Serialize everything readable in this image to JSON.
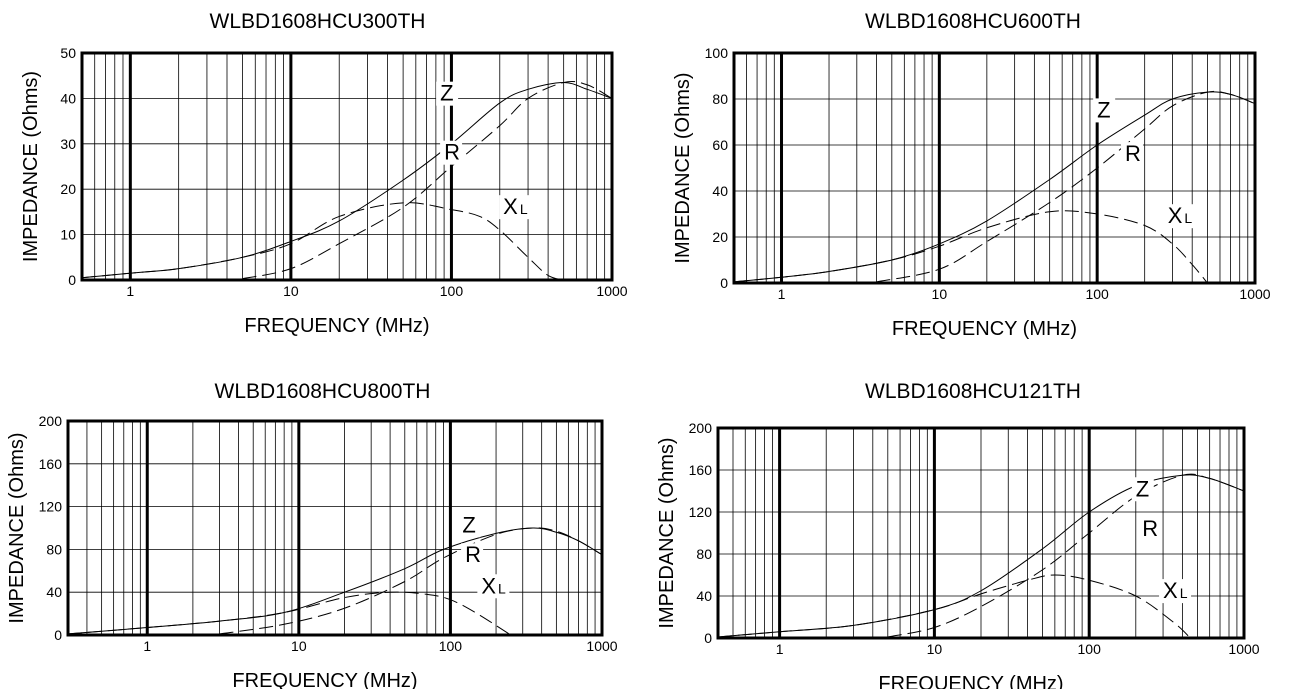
{
  "chart_data": [
    {
      "type": "line",
      "title": "WLBD1608HCU300TH",
      "xlabel": "FREQUENCY  (MHz)",
      "ylabel": "IMPEDANCE  (Ohms)",
      "xscale": "log",
      "xlim": [
        0.5,
        1000
      ],
      "ylim": [
        0,
        50
      ],
      "xticks": [
        1,
        10,
        100,
        1000
      ],
      "xtick_labels": [
        "1",
        "10",
        "100",
        "1000"
      ],
      "yticks": [
        0,
        10,
        20,
        30,
        40,
        50
      ],
      "ytick_labels": [
        "0",
        "10",
        "20",
        "30",
        "40",
        "50"
      ],
      "grid": true,
      "series": [
        {
          "name": "Z",
          "style": "solid",
          "x": [
            0.5,
            1,
            2,
            5,
            10,
            20,
            50,
            100,
            200,
            300,
            500,
            700,
            1000
          ],
          "y": [
            0.5,
            1.5,
            2.5,
            5,
            8.5,
            13,
            22,
            30,
            39,
            42,
            43.5,
            42,
            40
          ]
        },
        {
          "name": "R",
          "style": "dashed",
          "x": [
            5,
            10,
            20,
            50,
            100,
            200,
            300,
            500,
            700,
            1000
          ],
          "y": [
            0.3,
            2.5,
            8,
            16,
            25,
            34,
            40,
            43.5,
            43,
            40
          ]
        },
        {
          "name": "XL",
          "style": "dashed",
          "x": [
            0.5,
            1,
            2,
            5,
            10,
            20,
            50,
            100,
            150,
            200,
            300,
            400,
            500
          ],
          "y": [
            0.5,
            1.5,
            2.5,
            5,
            8,
            14,
            17,
            15.5,
            14,
            11,
            5,
            1,
            0
          ]
        }
      ],
      "labels": [
        {
          "text": "Z",
          "sub": "",
          "x": 85,
          "y": 39.5
        },
        {
          "text": "R",
          "sub": "",
          "x": 90,
          "y": 26.5
        },
        {
          "text": "X",
          "sub": "L",
          "x": 210,
          "y": 14.5
        }
      ]
    },
    {
      "type": "line",
      "title": "WLBD1608HCU600TH",
      "xlabel": "FREQUENCY  (MHz)",
      "ylabel": "IMPEDANCE  (Ohms)",
      "xscale": "log",
      "xlim": [
        0.5,
        1000
      ],
      "ylim": [
        0,
        100
      ],
      "xticks": [
        1,
        10,
        100,
        1000
      ],
      "xtick_labels": [
        "1",
        "10",
        "100",
        "1000"
      ],
      "yticks": [
        0,
        20,
        40,
        60,
        80,
        100
      ],
      "ytick_labels": [
        "0",
        "20",
        "40",
        "60",
        "80",
        "100"
      ],
      "grid": true,
      "series": [
        {
          "name": "Z",
          "style": "solid",
          "x": [
            0.5,
            1,
            2,
            5,
            10,
            20,
            50,
            100,
            200,
            300,
            500,
            700,
            1000
          ],
          "y": [
            0.5,
            2.5,
            5,
            10,
            17,
            27,
            45,
            60,
            73,
            80,
            83,
            82,
            78
          ]
        },
        {
          "name": "R",
          "style": "dashed",
          "x": [
            4,
            10,
            20,
            50,
            100,
            200,
            300,
            500,
            700,
            1000
          ],
          "y": [
            0.5,
            6,
            18,
            35,
            50,
            67,
            77,
            83,
            82,
            78
          ]
        },
        {
          "name": "XL",
          "style": "dashed",
          "x": [
            0.5,
            1,
            2,
            5,
            10,
            20,
            50,
            100,
            200,
            300,
            400,
            500
          ],
          "y": [
            0.5,
            2.5,
            5,
            10,
            16,
            24,
            31,
            30,
            25,
            17,
            8,
            0
          ]
        }
      ],
      "labels": [
        {
          "text": "Z",
          "sub": "",
          "x": 100,
          "y": 72
        },
        {
          "text": "R",
          "sub": "",
          "x": 150,
          "y": 53
        },
        {
          "text": "X",
          "sub": "L",
          "x": 280,
          "y": 26
        }
      ]
    },
    {
      "type": "line",
      "title": "WLBD1608HCU800TH",
      "xlabel": "FREQUENCY  (MHz)",
      "ylabel": "IMPEDANCE  (Ohms)",
      "xscale": "log",
      "xlim": [
        0.3,
        1000
      ],
      "ylim": [
        0,
        200
      ],
      "xticks": [
        1,
        10,
        100,
        1000
      ],
      "xtick_labels": [
        "1",
        "10",
        "100",
        "1000"
      ],
      "yticks": [
        0,
        40,
        80,
        120,
        160,
        200
      ],
      "ytick_labels": [
        "0",
        "40",
        "80",
        "120",
        "160",
        "200"
      ],
      "grid": true,
      "series": [
        {
          "name": "Z",
          "style": "solid",
          "x": [
            0.3,
            1,
            3,
            8,
            20,
            50,
            90,
            200,
            350,
            500,
            700,
            1000
          ],
          "y": [
            1,
            7,
            13,
            21,
            40,
            62,
            80,
            95,
            100,
            96,
            88,
            75
          ]
        },
        {
          "name": "R",
          "style": "dashed",
          "x": [
            3,
            8,
            20,
            50,
            90,
            200,
            350,
            500,
            700,
            1000
          ],
          "y": [
            1,
            10,
            25,
            50,
            72,
            94,
            100,
            97,
            88,
            75
          ]
        },
        {
          "name": "XL",
          "style": "dashed",
          "x": [
            0.3,
            1,
            3,
            8,
            20,
            40,
            70,
            100,
            150,
            250
          ],
          "y": [
            1,
            7,
            13,
            21,
            35,
            40,
            38,
            33,
            20,
            0
          ]
        }
      ],
      "labels": [
        {
          "text": "Z",
          "sub": "",
          "x": 120,
          "y": 96
        },
        {
          "text": "R",
          "sub": "",
          "x": 125,
          "y": 68
        },
        {
          "text": "X",
          "sub": "L",
          "x": 160,
          "y": 39
        }
      ]
    },
    {
      "type": "line",
      "title": "WLBD1608HCU121TH",
      "xlabel": "FREQUENCY  (MHz)",
      "ylabel": "IMPEDANCE  (Ohms)",
      "xscale": "log",
      "xlim": [
        0.4,
        1000
      ],
      "ylim": [
        0,
        200
      ],
      "xticks": [
        1,
        10,
        100,
        1000
      ],
      "xtick_labels": [
        "1",
        "10",
        "100",
        "1000"
      ],
      "yticks": [
        0,
        40,
        80,
        120,
        160,
        200
      ],
      "ytick_labels": [
        "0",
        "40",
        "80",
        "120",
        "160",
        "200"
      ],
      "grid": true,
      "series": [
        {
          "name": "Z",
          "style": "solid",
          "x": [
            0.4,
            1,
            3,
            10,
            20,
            50,
            100,
            200,
            400,
            600,
            1000
          ],
          "y": [
            1,
            6,
            12,
            27,
            45,
            85,
            120,
            145,
            155,
            152,
            140
          ]
        },
        {
          "name": "R",
          "style": "dashed",
          "x": [
            5,
            10,
            20,
            50,
            100,
            200,
            400,
            600,
            1000
          ],
          "y": [
            1,
            10,
            30,
            65,
            100,
            135,
            155,
            152,
            140
          ]
        },
        {
          "name": "XL",
          "style": "dashed",
          "x": [
            0.4,
            1,
            3,
            10,
            20,
            40,
            60,
            100,
            200,
            350,
            450
          ],
          "y": [
            1,
            6,
            12,
            27,
            42,
            55,
            60,
            55,
            40,
            15,
            0
          ]
        }
      ],
      "labels": [
        {
          "text": "Z",
          "sub": "",
          "x": 200,
          "y": 135
        },
        {
          "text": "R",
          "sub": "",
          "x": 220,
          "y": 97
        },
        {
          "text": "X",
          "sub": "L",
          "x": 300,
          "y": 38
        }
      ]
    }
  ]
}
